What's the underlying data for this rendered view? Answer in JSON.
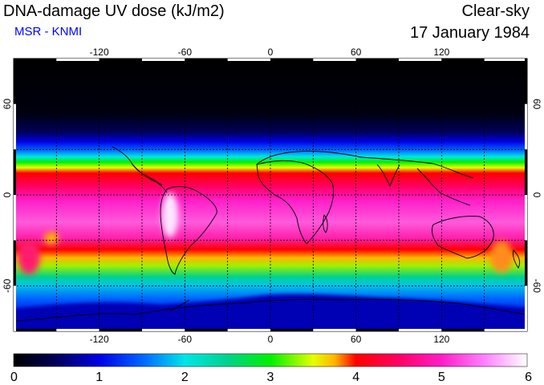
{
  "header": {
    "title": "DNA-damage UV dose (kJ/m2)",
    "subtitle": "MSR - KNMI",
    "condition": "Clear-sky",
    "date": "17 January 1984"
  },
  "map": {
    "lon_range": [
      -180,
      180
    ],
    "lat_range": [
      -90,
      90
    ],
    "lon_ticks": [
      {
        "value": -120,
        "label": "-120"
      },
      {
        "value": -60,
        "label": "-60"
      },
      {
        "value": 0,
        "label": "0"
      },
      {
        "value": 60,
        "label": "60"
      },
      {
        "value": 120,
        "label": "120"
      }
    ],
    "lat_ticks": [
      {
        "value": 60,
        "label": "60"
      },
      {
        "value": 0,
        "label": "0"
      },
      {
        "value": -60,
        "label": "-60"
      }
    ],
    "gridline_spacing_deg": 30,
    "colors": {
      "background": "#ffffff",
      "coastline": "#000000",
      "grid": "#000000"
    }
  },
  "colorbar": {
    "min": 0,
    "max": 6,
    "labels": [
      "0",
      "1",
      "2",
      "3",
      "4",
      "5",
      "6"
    ],
    "stops": [
      {
        "value": 0.0,
        "color": "#000000"
      },
      {
        "value": 0.5,
        "color": "#00005a"
      },
      {
        "value": 1.0,
        "color": "#0000e6"
      },
      {
        "value": 1.5,
        "color": "#0064ff"
      },
      {
        "value": 2.0,
        "color": "#00e6e6"
      },
      {
        "value": 2.5,
        "color": "#00d28c"
      },
      {
        "value": 3.0,
        "color": "#00f000"
      },
      {
        "value": 3.5,
        "color": "#e6ff00"
      },
      {
        "value": 3.75,
        "color": "#ffb400"
      },
      {
        "value": 4.0,
        "color": "#ff0000"
      },
      {
        "value": 4.5,
        "color": "#ff0064"
      },
      {
        "value": 5.0,
        "color": "#ff1ec8"
      },
      {
        "value": 5.5,
        "color": "#ff82ff"
      },
      {
        "value": 6.0,
        "color": "#ffffff"
      }
    ]
  }
}
